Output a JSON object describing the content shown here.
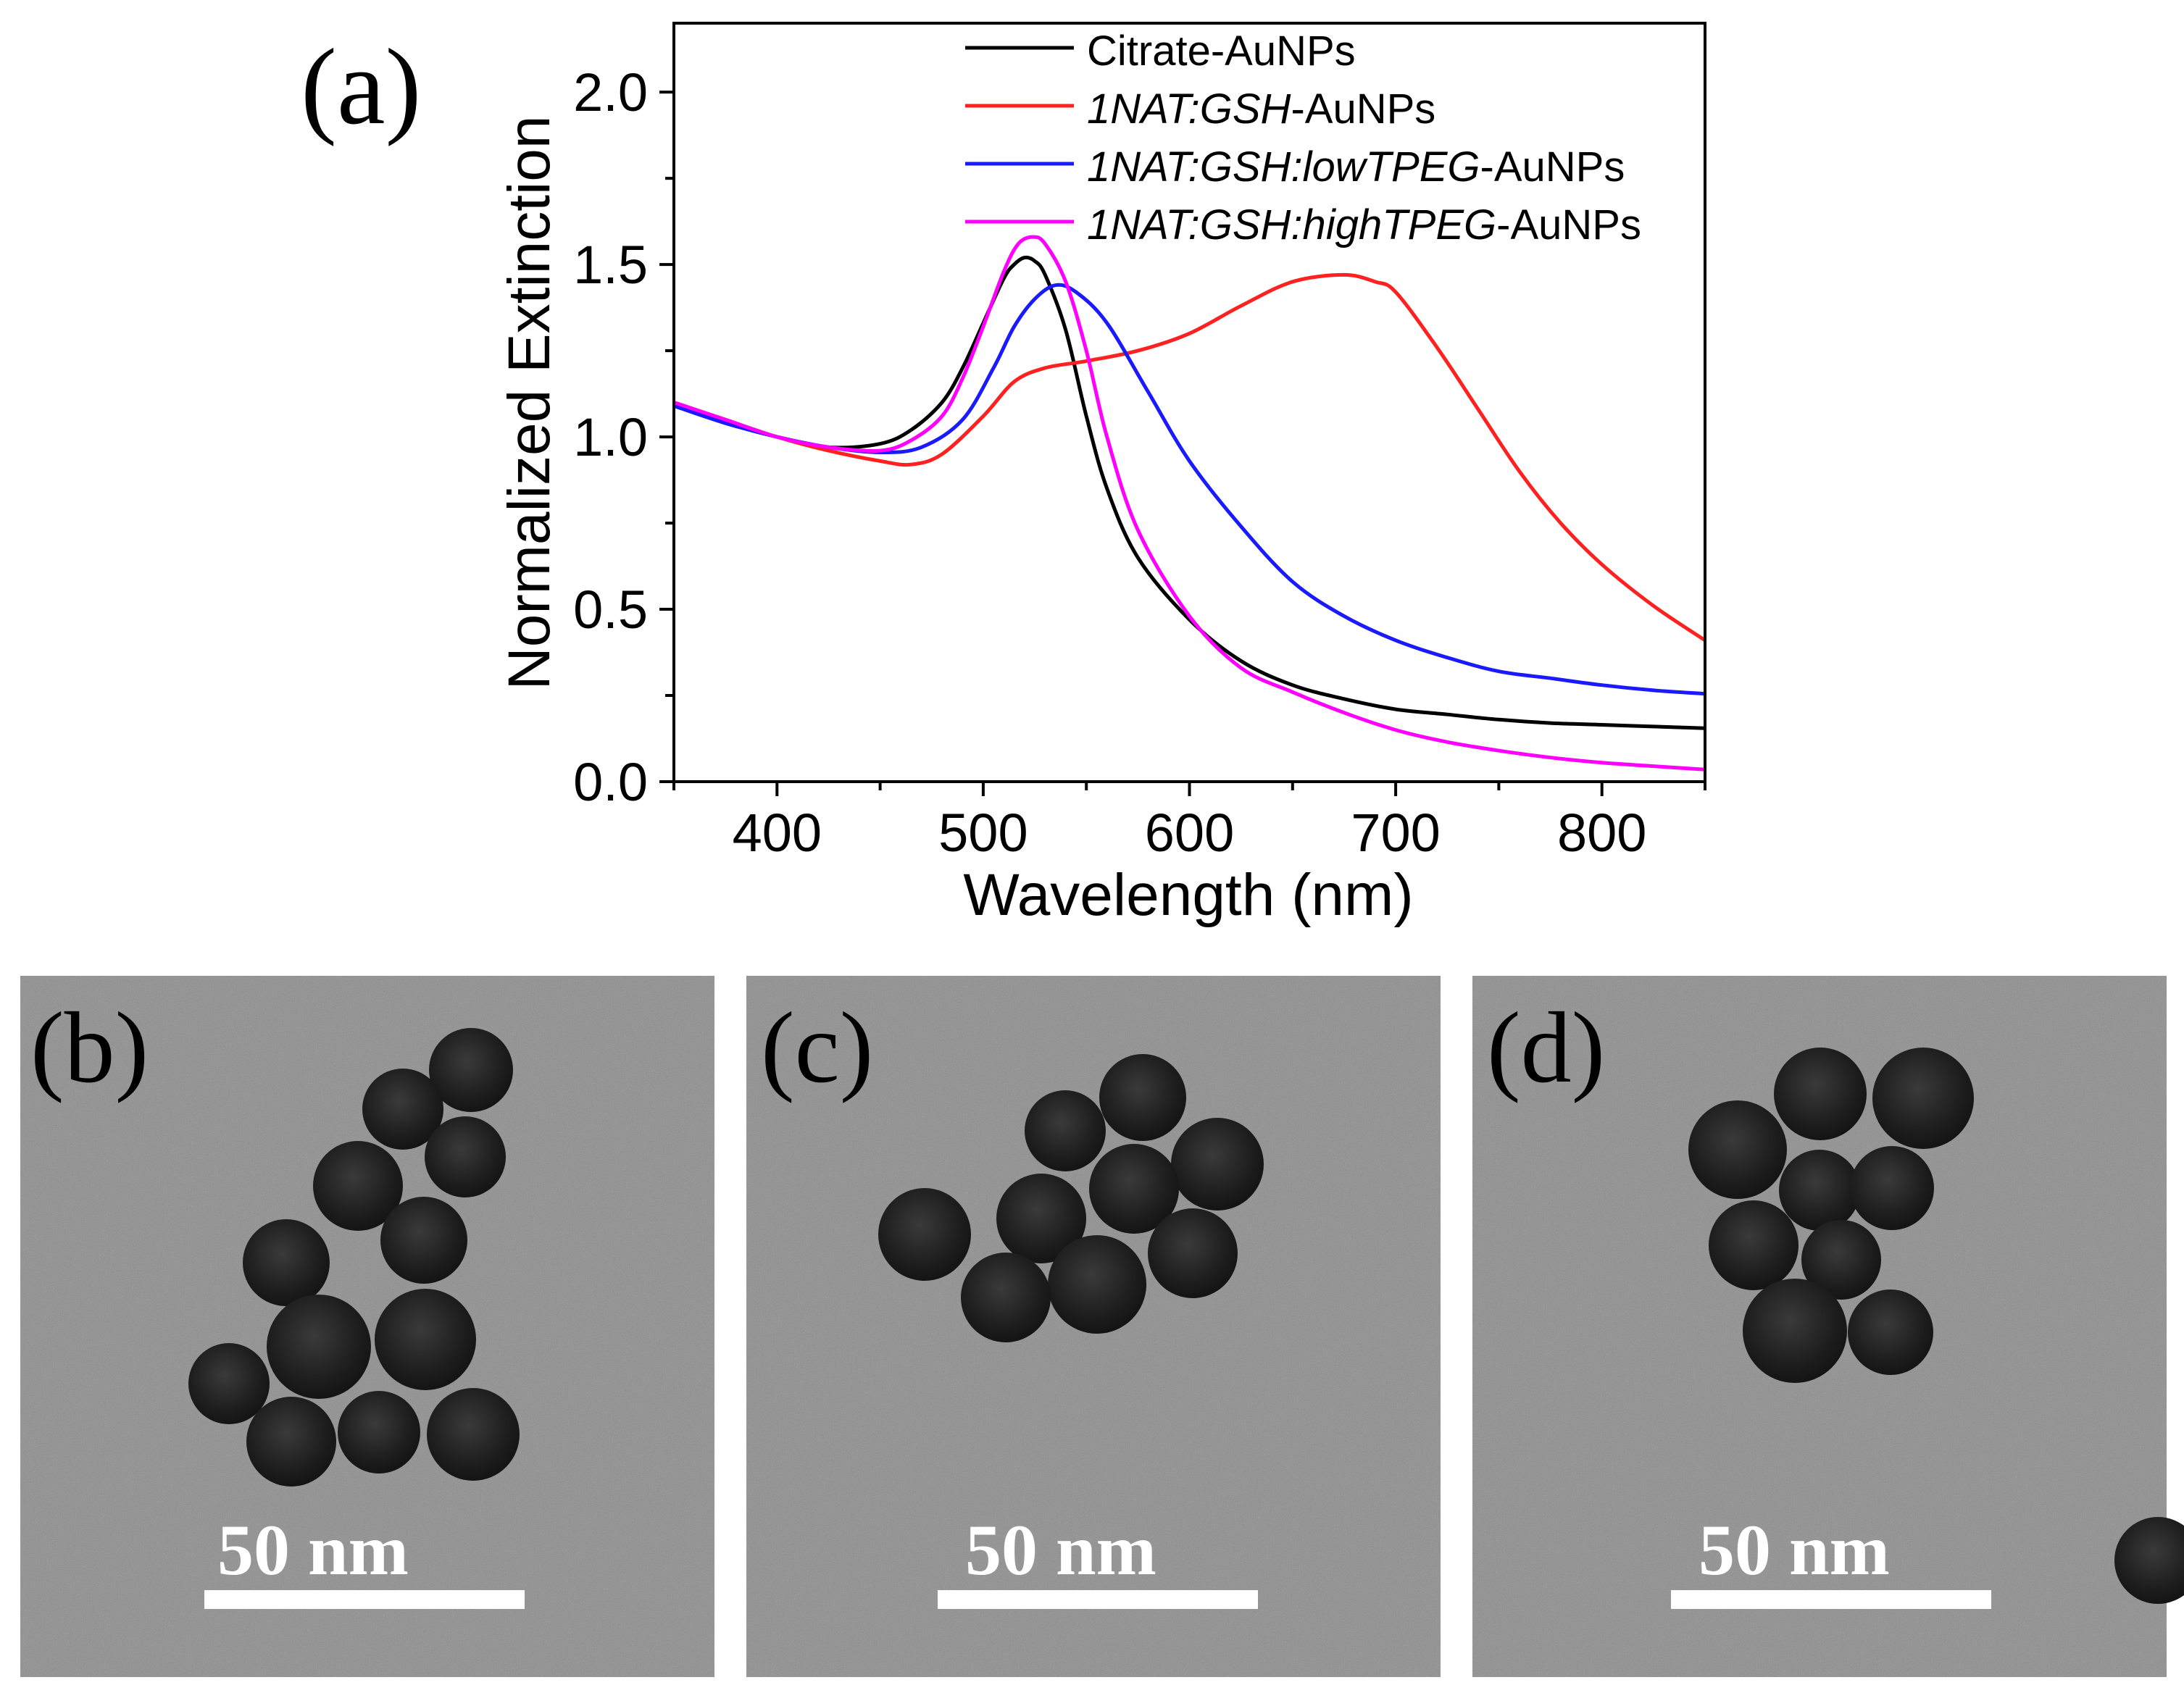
{
  "figure": {
    "panel_labels": [
      "(a)",
      "(b)",
      "(c)",
      "(d)"
    ]
  },
  "chart_data": {
    "type": "line",
    "title": "",
    "xlabel": "Wavelength (nm)",
    "ylabel": "Normalized Extinction",
    "xlim": [
      350,
      850
    ],
    "ylim": [
      0.0,
      2.2
    ],
    "xticks": [
      400,
      500,
      600,
      700,
      800
    ],
    "yticks": [
      0.0,
      0.5,
      1.0,
      1.5,
      2.0
    ],
    "xtick_labels": [
      "400",
      "500",
      "600",
      "700",
      "800"
    ],
    "ytick_labels": [
      "0.0",
      "0.5",
      "1.0",
      "1.5",
      "2.0"
    ],
    "legend_position": "top-right",
    "series": [
      {
        "name": "Citrate-AuNPs",
        "label_parts": [
          {
            "text": "Citrate-AuNPs",
            "italic": false
          }
        ],
        "color": "#000000",
        "x": [
          350,
          375,
          400,
          425,
          450,
          465,
          480,
          490,
          500,
          510,
          515,
          520,
          525,
          530,
          540,
          550,
          560,
          575,
          600,
          625,
          650,
          675,
          700,
          725,
          750,
          775,
          800,
          825,
          850
        ],
        "y": [
          1.09,
          1.04,
          1.0,
          0.97,
          0.98,
          1.02,
          1.1,
          1.2,
          1.33,
          1.46,
          1.5,
          1.52,
          1.51,
          1.47,
          1.31,
          1.06,
          0.85,
          0.65,
          0.47,
          0.35,
          0.28,
          0.24,
          0.21,
          0.195,
          0.18,
          0.17,
          0.165,
          0.16,
          0.155
        ]
      },
      {
        "name": "1NAT:GSH-AuNPs",
        "label_parts": [
          {
            "text": "1NAT:GSH",
            "italic": true
          },
          {
            "text": "-AuNPs",
            "italic": false
          }
        ],
        "color": "#ff2020",
        "x": [
          350,
          375,
          400,
          425,
          450,
          465,
          480,
          500,
          515,
          530,
          550,
          575,
          600,
          625,
          650,
          675,
          690,
          700,
          720,
          740,
          760,
          780,
          800,
          825,
          850
        ],
        "y": [
          1.1,
          1.05,
          1.0,
          0.96,
          0.93,
          0.92,
          0.95,
          1.06,
          1.16,
          1.2,
          1.22,
          1.25,
          1.3,
          1.38,
          1.45,
          1.47,
          1.45,
          1.42,
          1.26,
          1.08,
          0.9,
          0.75,
          0.63,
          0.51,
          0.41
        ]
      },
      {
        "name": "1NAT:GSH:lowTPEG-AuNPs",
        "label_parts": [
          {
            "text": "1NAT:GSH:lowTPEG",
            "italic": true
          },
          {
            "text": "-AuNPs",
            "italic": false
          }
        ],
        "color": "#1a1aff",
        "x": [
          350,
          375,
          400,
          425,
          450,
          470,
          490,
          505,
          515,
          525,
          535,
          545,
          560,
          580,
          600,
          625,
          650,
          675,
          700,
          725,
          750,
          775,
          800,
          825,
          850
        ],
        "y": [
          1.09,
          1.04,
          1.0,
          0.97,
          0.955,
          0.97,
          1.05,
          1.2,
          1.32,
          1.4,
          1.44,
          1.42,
          1.33,
          1.13,
          0.93,
          0.74,
          0.58,
          0.48,
          0.41,
          0.36,
          0.32,
          0.3,
          0.28,
          0.265,
          0.255
        ]
      },
      {
        "name": "1NAT:GSH:highTPEG-AuNPs",
        "label_parts": [
          {
            "text": "1NAT:GSH:highTPEG",
            "italic": true
          },
          {
            "text": "-AuNPs",
            "italic": false
          }
        ],
        "color": "#ff00ff",
        "x": [
          350,
          375,
          400,
          425,
          450,
          465,
          480,
          490,
          500,
          510,
          517,
          524,
          530,
          540,
          550,
          560,
          575,
          600,
          625,
          650,
          675,
          700,
          725,
          750,
          775,
          800,
          825,
          850
        ],
        "y": [
          1.1,
          1.05,
          1.0,
          0.97,
          0.96,
          0.99,
          1.06,
          1.17,
          1.32,
          1.48,
          1.56,
          1.58,
          1.56,
          1.45,
          1.25,
          1.0,
          0.73,
          0.48,
          0.33,
          0.26,
          0.2,
          0.15,
          0.115,
          0.09,
          0.07,
          0.055,
          0.045,
          0.035
        ]
      }
    ]
  },
  "tem_panels": [
    {
      "label": "(b)",
      "scale_bar": "50 nm"
    },
    {
      "label": "(c)",
      "scale_bar": "50 nm"
    },
    {
      "label": "(d)",
      "scale_bar": "50 nm"
    }
  ],
  "colors": {
    "tem_background": "#8f8f8f",
    "particle": "#262626"
  }
}
